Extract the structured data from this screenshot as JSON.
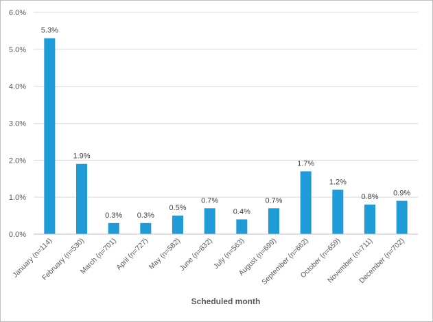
{
  "chart_data": {
    "type": "bar",
    "xlabel": "Scheduled month",
    "ylabel": "",
    "ylim": [
      0,
      6.0
    ],
    "yticks": [
      "0.0%",
      "1.0%",
      "2.0%",
      "3.0%",
      "4.0%",
      "5.0%",
      "6.0%"
    ],
    "grid": "horizontal",
    "legend": "none",
    "bar_color": "#1f9bd7",
    "categories": [
      "January (n=114)",
      "February (n=530)",
      "March (n=701)",
      "April (n=727)",
      "May (n=582)",
      "June (n=832)",
      "July (n=563)",
      "August (n=699)",
      "September (n=662)",
      "October (n=659)",
      "November (n=711)",
      "December (n=702)"
    ],
    "values": [
      5.3,
      1.9,
      0.3,
      0.3,
      0.5,
      0.7,
      0.4,
      0.7,
      1.7,
      1.2,
      0.8,
      0.9
    ],
    "data_labels": [
      "5.3%",
      "1.9%",
      "0.3%",
      "0.3%",
      "0.5%",
      "0.7%",
      "0.4%",
      "0.7%",
      "1.7%",
      "1.2%",
      "0.8%",
      "0.9%"
    ]
  }
}
